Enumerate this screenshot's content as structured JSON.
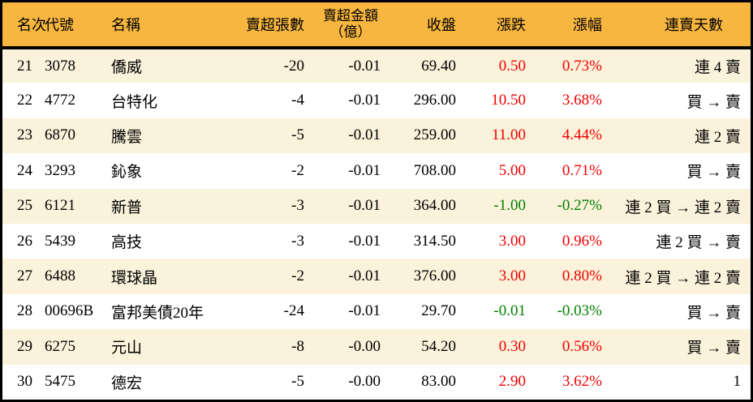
{
  "colors": {
    "header_bg": "#f6b63f",
    "stripe": "#faf2da",
    "border": "#000000",
    "up_red": "#f20000",
    "down_green": "#008000"
  },
  "table": {
    "headers": {
      "rank": "名次",
      "code": "代號",
      "name": "名稱",
      "volume": "賣超張數",
      "amount_line1": "賣超金額",
      "amount_line2": "（億）",
      "close": "收盤",
      "change": "漲跌",
      "change_pct": "漲幅",
      "streak": "連賣天數"
    }
  },
  "chart_data": {
    "type": "table",
    "title": "賣超排行 21-30",
    "columns": [
      "名次",
      "代號",
      "名稱",
      "賣超張數",
      "賣超金額（億）",
      "收盤",
      "漲跌",
      "漲幅",
      "連賣天數"
    ],
    "rows": [
      {
        "rank": "21",
        "code": "3078",
        "name": "僑威",
        "volume": "-20",
        "amount": "-0.01",
        "close": "69.40",
        "change": "0.50",
        "change_pct": "0.73%",
        "streak": "連 4 賣",
        "direction": "up"
      },
      {
        "rank": "22",
        "code": "4772",
        "name": "台特化",
        "volume": "-4",
        "amount": "-0.01",
        "close": "296.00",
        "change": "10.50",
        "change_pct": "3.68%",
        "streak": "買 → 賣",
        "direction": "up"
      },
      {
        "rank": "23",
        "code": "6870",
        "name": "騰雲",
        "volume": "-5",
        "amount": "-0.01",
        "close": "259.00",
        "change": "11.00",
        "change_pct": "4.44%",
        "streak": "連 2 賣",
        "direction": "up"
      },
      {
        "rank": "24",
        "code": "3293",
        "name": "鈊象",
        "volume": "-2",
        "amount": "-0.01",
        "close": "708.00",
        "change": "5.00",
        "change_pct": "0.71%",
        "streak": "買 → 賣",
        "direction": "up"
      },
      {
        "rank": "25",
        "code": "6121",
        "name": "新普",
        "volume": "-3",
        "amount": "-0.01",
        "close": "364.00",
        "change": "-1.00",
        "change_pct": "-0.27%",
        "streak": "連 2 買 → 連 2 賣",
        "direction": "down"
      },
      {
        "rank": "26",
        "code": "5439",
        "name": "高技",
        "volume": "-3",
        "amount": "-0.01",
        "close": "314.50",
        "change": "3.00",
        "change_pct": "0.96%",
        "streak": "連 2 買 → 賣",
        "direction": "up"
      },
      {
        "rank": "27",
        "code": "6488",
        "name": "環球晶",
        "volume": "-2",
        "amount": "-0.01",
        "close": "376.00",
        "change": "3.00",
        "change_pct": "0.80%",
        "streak": "連 2 買 → 連 2 賣",
        "direction": "up"
      },
      {
        "rank": "28",
        "code": "00696B",
        "name": "富邦美債20年",
        "volume": "-24",
        "amount": "-0.01",
        "close": "29.70",
        "change": "-0.01",
        "change_pct": "-0.03%",
        "streak": "買 → 賣",
        "direction": "down"
      },
      {
        "rank": "29",
        "code": "6275",
        "name": "元山",
        "volume": "-8",
        "amount": "-0.00",
        "close": "54.20",
        "change": "0.30",
        "change_pct": "0.56%",
        "streak": "買 → 賣",
        "direction": "up"
      },
      {
        "rank": "30",
        "code": "5475",
        "name": "德宏",
        "volume": "-5",
        "amount": "-0.00",
        "close": "83.00",
        "change": "2.90",
        "change_pct": "3.62%",
        "streak": "1",
        "direction": "up"
      }
    ]
  }
}
